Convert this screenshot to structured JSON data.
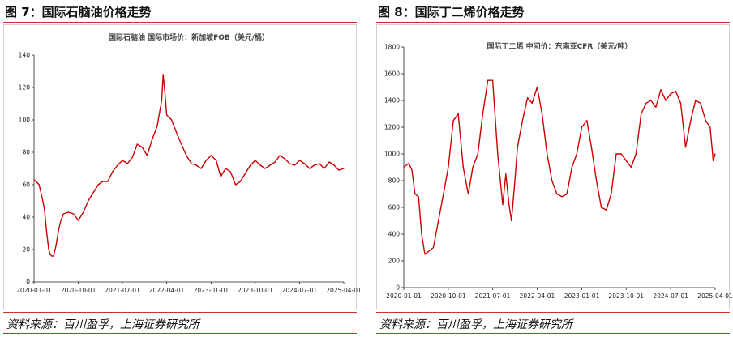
{
  "figures": [
    {
      "label": "图 7：国际石脑油价格走势",
      "source": "资料来源：百川盈孚，上海证券研究所"
    },
    {
      "label": "图 8：国际丁二烯价格走势",
      "source": "资料来源：百川盈孚，上海证券研究所"
    }
  ],
  "chart_data": [
    {
      "type": "line",
      "title": "国际石脑油 国际市场价：新加坡FOB（美元/桶）",
      "xlabel": "",
      "ylabel": "",
      "ylim": [
        0,
        140
      ],
      "y_ticks": [
        0,
        20,
        40,
        60,
        80,
        100,
        120,
        140
      ],
      "x_ticks": [
        "2020-01-01",
        "2020-10-01",
        "2021-07-01",
        "2022-04-01",
        "2023-01-01",
        "2023-10-01",
        "2024-07-01",
        "2025-04-01"
      ],
      "color": "#cc0000",
      "grid": false,
      "series": [
        {
          "x": [
            "2020-01-01",
            "2020-01-15",
            "2020-02-01",
            "2020-02-20",
            "2020-03-05",
            "2020-03-20",
            "2020-04-01",
            "2020-04-10",
            "2020-04-20",
            "2020-05-01",
            "2020-05-15",
            "2020-06-01",
            "2020-06-15",
            "2020-07-01",
            "2020-08-01",
            "2020-09-01",
            "2020-10-01",
            "2020-11-01",
            "2020-12-01",
            "2021-01-01",
            "2021-02-01",
            "2021-03-01",
            "2021-04-01",
            "2021-05-01",
            "2021-06-01",
            "2021-07-01",
            "2021-08-01",
            "2021-09-01",
            "2021-10-01",
            "2021-11-01",
            "2021-12-01",
            "2022-01-01",
            "2022-02-01",
            "2022-03-01",
            "2022-03-10",
            "2022-03-20",
            "2022-04-01",
            "2022-05-01",
            "2022-06-01",
            "2022-07-01",
            "2022-08-01",
            "2022-09-01",
            "2022-10-01",
            "2022-11-01",
            "2022-12-01",
            "2023-01-01",
            "2023-02-01",
            "2023-03-01",
            "2023-04-01",
            "2023-05-01",
            "2023-06-01",
            "2023-07-01",
            "2023-08-01",
            "2023-09-01",
            "2023-10-01",
            "2023-11-01",
            "2023-12-01",
            "2024-01-01",
            "2024-02-01",
            "2024-03-01",
            "2024-04-01",
            "2024-05-01",
            "2024-06-01",
            "2024-07-01",
            "2024-08-01",
            "2024-09-01",
            "2024-10-01",
            "2024-11-01",
            "2024-12-01",
            "2025-01-01",
            "2025-02-01",
            "2025-03-01",
            "2025-04-01"
          ],
          "y": [
            63,
            62,
            60,
            52,
            45,
            30,
            20,
            17,
            16,
            16,
            22,
            32,
            38,
            42,
            43,
            42,
            38,
            43,
            50,
            55,
            60,
            62,
            62,
            68,
            72,
            75,
            73,
            77,
            85,
            83,
            78,
            88,
            96,
            112,
            128,
            118,
            103,
            100,
            92,
            85,
            78,
            73,
            72,
            70,
            75,
            78,
            75,
            65,
            70,
            68,
            60,
            62,
            67,
            72,
            75,
            72,
            70,
            72,
            74,
            78,
            76,
            73,
            72,
            75,
            73,
            70,
            72,
            73,
            70,
            74,
            72,
            69,
            70
          ]
        }
      ]
    },
    {
      "type": "line",
      "title": "国际丁二烯 中间价：东南亚CFR（美元/吨）",
      "xlabel": "",
      "ylabel": "",
      "ylim": [
        0,
        1800
      ],
      "y_ticks": [
        0,
        200,
        400,
        600,
        800,
        1000,
        1200,
        1400,
        1600,
        1800
      ],
      "x_ticks": [
        "2020-01-01",
        "2020-10-01",
        "2021-07-01",
        "2022-04-01",
        "2023-01-01",
        "2023-10-01",
        "2024-07-01",
        "2025-04-01"
      ],
      "color": "#cc0000",
      "grid": false,
      "series": [
        {
          "x": [
            "2020-01-01",
            "2020-02-01",
            "2020-02-20",
            "2020-03-10",
            "2020-04-01",
            "2020-04-20",
            "2020-05-10",
            "2020-06-01",
            "2020-07-01",
            "2020-08-01",
            "2020-09-01",
            "2020-10-01",
            "2020-11-01",
            "2020-12-01",
            "2021-01-01",
            "2021-02-01",
            "2021-03-01",
            "2021-04-01",
            "2021-05-01",
            "2021-06-01",
            "2021-07-01",
            "2021-08-01",
            "2021-09-01",
            "2021-09-20",
            "2021-10-10",
            "2021-10-25",
            "2021-11-15",
            "2021-12-01",
            "2022-01-01",
            "2022-02-01",
            "2022-03-01",
            "2022-04-01",
            "2022-05-01",
            "2022-06-01",
            "2022-07-01",
            "2022-08-01",
            "2022-09-01",
            "2022-10-01",
            "2022-11-01",
            "2022-12-01",
            "2023-01-01",
            "2023-02-01",
            "2023-03-01",
            "2023-04-01",
            "2023-05-01",
            "2023-06-01",
            "2023-07-01",
            "2023-08-01",
            "2023-09-01",
            "2023-10-01",
            "2023-11-01",
            "2023-12-01",
            "2024-01-01",
            "2024-02-01",
            "2024-03-01",
            "2024-04-01",
            "2024-05-01",
            "2024-06-01",
            "2024-07-01",
            "2024-08-01",
            "2024-09-01",
            "2024-10-01",
            "2024-11-01",
            "2024-12-01",
            "2025-01-01",
            "2025-02-01",
            "2025-03-01",
            "2025-03-20",
            "2025-04-01"
          ],
          "y": [
            900,
            930,
            880,
            700,
            680,
            400,
            250,
            270,
            300,
            500,
            700,
            900,
            1250,
            1300,
            900,
            700,
            900,
            1000,
            1300,
            1550,
            1550,
            1000,
            620,
            850,
            620,
            500,
            800,
            1050,
            1250,
            1420,
            1380,
            1500,
            1300,
            1000,
            800,
            700,
            680,
            700,
            900,
            1000,
            1200,
            1250,
            1050,
            800,
            600,
            580,
            700,
            1000,
            1000,
            950,
            900,
            1000,
            1300,
            1380,
            1400,
            1350,
            1480,
            1400,
            1450,
            1470,
            1380,
            1050,
            1250,
            1400,
            1380,
            1250,
            1200,
            950,
            1000
          ]
        }
      ]
    }
  ]
}
